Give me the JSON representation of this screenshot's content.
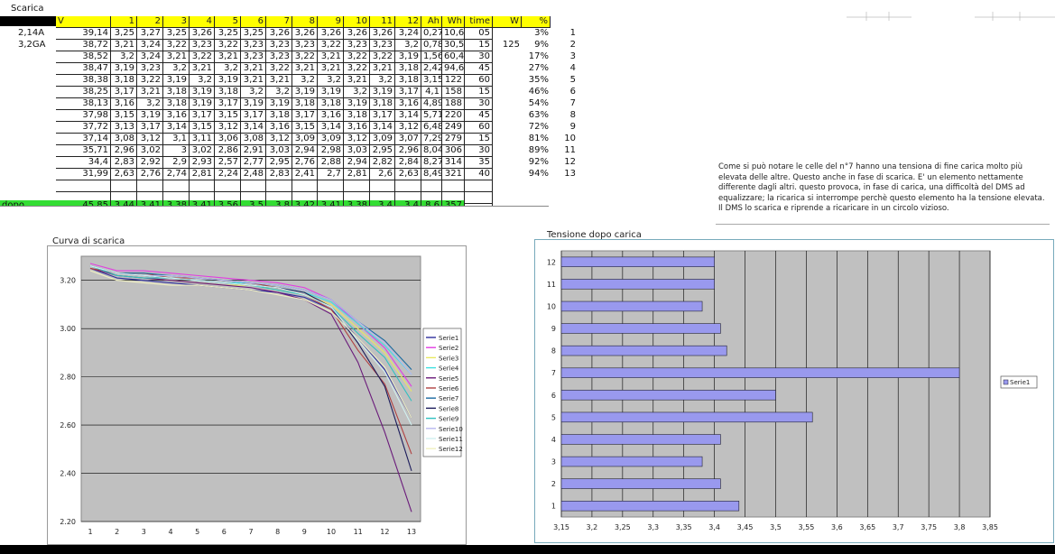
{
  "sheet": {
    "title": "Scarica",
    "header_row": [
      "V Batt./collo",
      "1",
      "2",
      "3",
      "4",
      "5",
      "6",
      "7",
      "8",
      "9",
      "10",
      "11",
      "12",
      "Ah",
      "Wh",
      "time",
      "W",
      "%"
    ],
    "side_labels": [
      "2,14A",
      "3,2GA"
    ],
    "w_value": "125",
    "row_numbers": [
      "1",
      "2",
      "3",
      "4",
      "5",
      "6",
      "7",
      "8",
      "9",
      "10",
      "11",
      "12",
      "13"
    ],
    "rows": [
      [
        "39,14",
        "3,25",
        "3,27",
        "3,25",
        "3,26",
        "3,25",
        "3,25",
        "3,26",
        "3,26",
        "3,26",
        "3,26",
        "3,26",
        "3,24",
        "0,27",
        "10,6",
        "05",
        "3%"
      ],
      [
        "38,72",
        "3,21",
        "3,24",
        "3,22",
        "3,23",
        "3,22",
        "3,23",
        "3,23",
        "3,23",
        "3,22",
        "3,23",
        "3,23",
        "3,2",
        "0,78",
        "30,5",
        "15",
        "9%"
      ],
      [
        "38,52",
        "3,2",
        "3,24",
        "3,21",
        "3,22",
        "3,21",
        "3,23",
        "3,23",
        "3,22",
        "3,21",
        "3,22",
        "3,22",
        "3,19",
        "1,56",
        "60,4",
        "30",
        "17%"
      ],
      [
        "38,47",
        "3,19",
        "3,23",
        "3,2",
        "3,21",
        "3,2",
        "3,21",
        "3,22",
        "3,21",
        "3,21",
        "3,22",
        "3,21",
        "3,18",
        "2,42",
        "94,6",
        "45",
        "27%"
      ],
      [
        "38,38",
        "3,18",
        "3,22",
        "3,19",
        "3,2",
        "3,19",
        "3,21",
        "3,21",
        "3,2",
        "3,2",
        "3,21",
        "3,2",
        "3,18",
        "3,15",
        "122",
        "60",
        "35%"
      ],
      [
        "38,25",
        "3,17",
        "3,21",
        "3,18",
        "3,19",
        "3,18",
        "3,2",
        "3,2",
        "3,19",
        "3,19",
        "3,2",
        "3,19",
        "3,17",
        "4,1",
        "158",
        "15",
        "46%"
      ],
      [
        "38,13",
        "3,16",
        "3,2",
        "3,18",
        "3,19",
        "3,17",
        "3,19",
        "3,19",
        "3,18",
        "3,18",
        "3,19",
        "3,18",
        "3,16",
        "4,89",
        "188",
        "30",
        "54%"
      ],
      [
        "37,98",
        "3,15",
        "3,19",
        "3,16",
        "3,17",
        "3,15",
        "3,17",
        "3,18",
        "3,17",
        "3,16",
        "3,18",
        "3,17",
        "3,14",
        "5,71",
        "220",
        "45",
        "63%"
      ],
      [
        "37,72",
        "3,13",
        "3,17",
        "3,14",
        "3,15",
        "3,12",
        "3,14",
        "3,16",
        "3,15",
        "3,14",
        "3,16",
        "3,14",
        "3,12",
        "6,48",
        "249",
        "60",
        "72%"
      ],
      [
        "37,14",
        "3,08",
        "3,12",
        "3,1",
        "3,11",
        "3,06",
        "3,08",
        "3,12",
        "3,09",
        "3,09",
        "3,12",
        "3,09",
        "3,07",
        "7,29",
        "279",
        "15",
        "81%"
      ],
      [
        "35,71",
        "2,96",
        "3,02",
        "3",
        "3,02",
        "2,86",
        "2,91",
        "3,03",
        "2,94",
        "2,98",
        "3,03",
        "2,95",
        "2,96",
        "8,04",
        "306",
        "30",
        "89%"
      ],
      [
        "34,4",
        "2,83",
        "2,92",
        "2,9",
        "2,93",
        "2,57",
        "2,77",
        "2,95",
        "2,76",
        "2,88",
        "2,94",
        "2,82",
        "2,84",
        "8,27",
        "314",
        "35",
        "92%"
      ],
      [
        "31,99",
        "2,63",
        "2,76",
        "2,74",
        "2,81",
        "2,24",
        "2,48",
        "2,83",
        "2,41",
        "2,7",
        "2,81",
        "2,6",
        "2,63",
        "8,49",
        "321",
        "40",
        "94%"
      ]
    ],
    "after_charge": {
      "label": "dopo ricarica",
      "values": [
        "45,85",
        "3,44",
        "3,41",
        "3,38",
        "3,41",
        "3,56",
        "3,5",
        "3,8",
        "3,42",
        "3,41",
        "3,38",
        "3,4",
        "3,4",
        "8,6",
        "357"
      ]
    }
  },
  "note": "Come si può notare le celle del n°7 hanno una tensiona di fine carica molto più elevata delle altre. Questo anche in fase di scarica. E' un elemento nettamente differente dagli altri. questo provoca, in fase di carica, una difficoltà del DMS ad equalizzare; la ricarica si interrompe perchè questo elemento ha la tensione elevata. Il DMS lo scarica e riprende a ricaricare in un circolo vizioso.",
  "chart_data": [
    {
      "type": "line",
      "title": "Curva di scarica",
      "x": [
        1,
        2,
        3,
        4,
        5,
        6,
        7,
        8,
        9,
        10,
        11,
        12,
        13
      ],
      "ylim": [
        2.2,
        3.3
      ],
      "yticks": [
        "3.20",
        "3.00",
        "2.80",
        "2.60",
        "2.40",
        "2.20"
      ],
      "xticks": [
        "1",
        "2",
        "3",
        "4",
        "5",
        "6",
        "7",
        "8",
        "9",
        "10",
        "11",
        "12",
        "13"
      ],
      "grid": "horizontal",
      "legend_position": "right",
      "series_colors": [
        "#2e2e9c",
        "#e23ce2",
        "#e8e860",
        "#3ee0e0",
        "#6a1a7a",
        "#b04040",
        "#1a6aa0",
        "#1a1a5a",
        "#30c0c0",
        "#b8b8f0",
        "#d0f0f0",
        "#f0f0c0"
      ],
      "series": [
        {
          "name": "Serie1",
          "values": [
            3.25,
            3.21,
            3.2,
            3.19,
            3.18,
            3.17,
            3.16,
            3.15,
            3.13,
            3.08,
            2.96,
            2.83,
            2.63
          ]
        },
        {
          "name": "Serie2",
          "values": [
            3.27,
            3.24,
            3.24,
            3.23,
            3.22,
            3.21,
            3.2,
            3.19,
            3.17,
            3.12,
            3.02,
            2.92,
            2.76
          ]
        },
        {
          "name": "Serie3",
          "values": [
            3.25,
            3.22,
            3.21,
            3.2,
            3.19,
            3.18,
            3.18,
            3.16,
            3.14,
            3.1,
            3.0,
            2.9,
            2.74
          ]
        },
        {
          "name": "Serie4",
          "values": [
            3.26,
            3.23,
            3.22,
            3.21,
            3.2,
            3.19,
            3.19,
            3.17,
            3.15,
            3.11,
            3.02,
            2.93,
            2.81
          ]
        },
        {
          "name": "Serie5",
          "values": [
            3.25,
            3.22,
            3.21,
            3.2,
            3.19,
            3.18,
            3.17,
            3.15,
            3.12,
            3.06,
            2.86,
            2.57,
            2.24
          ]
        },
        {
          "name": "Serie6",
          "values": [
            3.25,
            3.23,
            3.23,
            3.21,
            3.21,
            3.2,
            3.19,
            3.17,
            3.14,
            3.08,
            2.91,
            2.77,
            2.48
          ]
        },
        {
          "name": "Serie7",
          "values": [
            3.26,
            3.23,
            3.23,
            3.22,
            3.21,
            3.2,
            3.19,
            3.18,
            3.16,
            3.12,
            3.03,
            2.95,
            2.83
          ]
        },
        {
          "name": "Serie8",
          "values": [
            3.26,
            3.23,
            3.22,
            3.21,
            3.2,
            3.19,
            3.18,
            3.17,
            3.15,
            3.09,
            2.94,
            2.76,
            2.41
          ]
        },
        {
          "name": "Serie9",
          "values": [
            3.26,
            3.22,
            3.21,
            3.21,
            3.2,
            3.19,
            3.18,
            3.16,
            3.14,
            3.09,
            2.98,
            2.88,
            2.7
          ]
        },
        {
          "name": "Serie10",
          "values": [
            3.26,
            3.23,
            3.22,
            3.22,
            3.21,
            3.2,
            3.19,
            3.18,
            3.16,
            3.12,
            3.03,
            2.94,
            2.81
          ]
        },
        {
          "name": "Serie11",
          "values": [
            3.26,
            3.23,
            3.22,
            3.21,
            3.2,
            3.19,
            3.18,
            3.17,
            3.14,
            3.09,
            2.95,
            2.82,
            2.6
          ]
        },
        {
          "name": "Serie12",
          "values": [
            3.24,
            3.2,
            3.19,
            3.18,
            3.18,
            3.17,
            3.16,
            3.14,
            3.12,
            3.07,
            2.96,
            2.84,
            2.63
          ]
        }
      ]
    },
    {
      "type": "bar",
      "orientation": "horizontal",
      "title": "Tensione dopo carica",
      "categories": [
        "1",
        "2",
        "3",
        "4",
        "5",
        "6",
        "7",
        "8",
        "9",
        "10",
        "11",
        "12"
      ],
      "series": [
        {
          "name": "Serie1",
          "values": [
            3.44,
            3.41,
            3.38,
            3.41,
            3.56,
            3.5,
            3.8,
            3.42,
            3.41,
            3.38,
            3.4,
            3.4
          ]
        }
      ],
      "xlim": [
        3.15,
        3.85
      ],
      "xticks": [
        "3,15",
        "3,2",
        "3,25",
        "3,3",
        "3,35",
        "3,4",
        "3,45",
        "3,5",
        "3,55",
        "3,6",
        "3,65",
        "3,7",
        "3,75",
        "3,8",
        "3,85"
      ],
      "grid": "vertical",
      "legend_position": "right",
      "bar_color": "#9999ee"
    }
  ]
}
